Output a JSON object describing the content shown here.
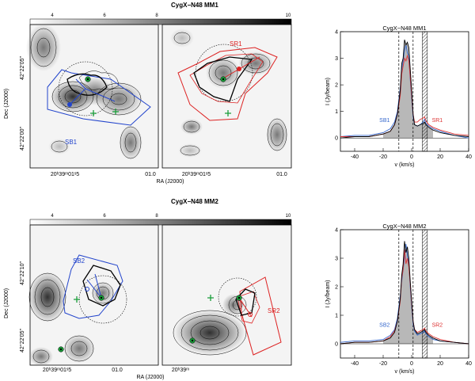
{
  "top": {
    "title": "CygX−N48  MM1",
    "colorbar": {
      "ticks": [
        "4",
        "6",
        "8",
        "10"
      ]
    },
    "left_panel": {
      "dec_label": "Dec (J2000)",
      "dec_ticks": [
        "42°22′05″",
        "42°22′00″"
      ],
      "ra_ticks": [
        "20ʰ39ᵐ01ˢ5",
        "01.0"
      ],
      "ra_label": "RA (J2000)",
      "outflow_label": "SB1",
      "outflow_color": "#2244cc"
    },
    "right_panel": {
      "outflow_label": "SR1",
      "outflow_color": "#dd2222",
      "ra_ticks": [
        "20ʰ39ᵐ01ˢ5",
        "01.0"
      ]
    },
    "spectrum": {
      "title": "CygX−N48  MM1",
      "ylabel": "I (Jy/beam)",
      "xlabel": "v (km/s)",
      "left_label": "SB1",
      "right_label": "SR1"
    }
  },
  "bottom": {
    "title": "CygX−N48  MM2",
    "colorbar": {
      "ticks": [
        "4",
        "6",
        "8",
        "10"
      ]
    },
    "left_panel": {
      "dec_label": "Dec (J2000)",
      "dec_ticks": [
        "42°22′10″",
        "42°22′05″"
      ],
      "ra_ticks": [
        "20ʰ39ᵐ01ˢ5",
        "01.0"
      ],
      "ra_label": "RA (J2000)",
      "outflow_label": "SB2",
      "outflow_color": "#2244cc"
    },
    "right_panel": {
      "outflow_label": "SR2",
      "outflow_color": "#dd2222",
      "ra_ticks": [
        "20ʰ39ᵐ"
      ]
    },
    "spectrum": {
      "title": "CygX−N48  MM2",
      "ylabel": "I (Jy/beam)",
      "xlabel": "v (km/s)",
      "left_label": "SB2",
      "right_label": "SR2"
    }
  },
  "chart_data": [
    {
      "type": "line",
      "title": "CygX−N48  MM1",
      "xlabel": "v (km/s)",
      "ylabel": "I (Jy/beam)",
      "xlim": [
        -50,
        40
      ],
      "ylim": [
        -0.5,
        4.0
      ],
      "x_ticks": [
        -40,
        -20,
        0,
        20,
        40
      ],
      "y_ticks": [
        0,
        1,
        2,
        3,
        4
      ],
      "vlines_dashed": [
        -9,
        1
      ],
      "hatched_band": [
        7.5,
        11
      ],
      "series": [
        {
          "name": "black",
          "color": "#000000",
          "x": [
            -50,
            -40,
            -30,
            -20,
            -15,
            -12,
            -10,
            -8,
            -7,
            -6,
            -5,
            -4,
            -3,
            -2,
            -1,
            0,
            1,
            2,
            4,
            6,
            8,
            9,
            10,
            12,
            15,
            20,
            30,
            40
          ],
          "y": [
            0.0,
            0.05,
            0.05,
            0.15,
            0.25,
            0.5,
            0.9,
            1.8,
            2.8,
            3.0,
            3.7,
            3.5,
            3.6,
            3.4,
            2.6,
            1.8,
            0.9,
            0.5,
            0.45,
            0.5,
            0.55,
            0.6,
            0.5,
            0.4,
            0.3,
            0.2,
            0.1,
            0.05
          ]
        },
        {
          "name": "SB1",
          "color": "#3366cc",
          "x": [
            -50,
            -40,
            -30,
            -20,
            -15,
            -12,
            -10,
            -8,
            -7,
            -6,
            -5,
            -4,
            -3,
            -2,
            -1,
            0,
            1,
            2,
            4,
            6,
            8,
            9,
            10,
            12,
            15,
            20,
            30,
            40
          ],
          "y": [
            0.05,
            0.1,
            0.1,
            0.2,
            0.35,
            0.6,
            1.0,
            1.9,
            2.6,
            2.9,
            3.3,
            3.5,
            3.2,
            3.1,
            2.2,
            1.5,
            0.8,
            0.5,
            0.45,
            0.5,
            0.6,
            0.7,
            0.55,
            0.45,
            0.35,
            0.25,
            0.1,
            0.0
          ]
        },
        {
          "name": "SR1",
          "color": "#dd3333",
          "x": [
            -50,
            -40,
            -30,
            -20,
            -15,
            -12,
            -10,
            -8,
            -7,
            -6,
            -5,
            -4,
            -3,
            -2,
            -1,
            0,
            1,
            2,
            4,
            6,
            8,
            9,
            10,
            12,
            15,
            20,
            30,
            40
          ],
          "y": [
            0.05,
            0.05,
            0.05,
            0.15,
            0.25,
            0.5,
            0.9,
            1.6,
            2.4,
            2.7,
            3.0,
            2.9,
            3.1,
            2.9,
            2.3,
            1.6,
            0.9,
            0.6,
            0.6,
            0.7,
            0.75,
            0.8,
            0.65,
            0.5,
            0.4,
            0.3,
            0.15,
            0.1
          ]
        }
      ]
    },
    {
      "type": "line",
      "title": "CygX−N48  MM2",
      "xlabel": "v (km/s)",
      "ylabel": "I (Jy/beam)",
      "xlim": [
        -50,
        40
      ],
      "ylim": [
        -0.5,
        4.0
      ],
      "x_ticks": [
        -40,
        -20,
        0,
        20,
        40
      ],
      "y_ticks": [
        0,
        1,
        2,
        3,
        4
      ],
      "vlines_dashed": [
        -9,
        1
      ],
      "hatched_band": [
        7.5,
        11
      ],
      "series": [
        {
          "name": "black",
          "color": "#000000",
          "x": [
            -50,
            -40,
            -30,
            -20,
            -15,
            -12,
            -10,
            -8,
            -7,
            -6,
            -5,
            -4,
            -3,
            -2,
            -1,
            0,
            1,
            2,
            4,
            6,
            8,
            9,
            10,
            12,
            15,
            20,
            30,
            40
          ],
          "y": [
            0.0,
            0.05,
            0.05,
            0.1,
            0.2,
            0.4,
            0.8,
            1.6,
            2.4,
            2.8,
            3.6,
            3.2,
            3.4,
            3.0,
            2.2,
            1.5,
            0.8,
            0.5,
            0.35,
            0.4,
            0.45,
            0.5,
            0.4,
            0.3,
            0.2,
            0.1,
            0.05,
            0.0
          ]
        },
        {
          "name": "SB2",
          "color": "#3366cc",
          "x": [
            -50,
            -40,
            -30,
            -20,
            -15,
            -12,
            -10,
            -8,
            -7,
            -6,
            -5,
            -4,
            -3,
            -2,
            -1,
            0,
            1,
            2,
            4,
            6,
            8,
            9,
            10,
            12,
            15,
            20,
            30,
            40
          ],
          "y": [
            0.05,
            0.1,
            0.1,
            0.15,
            0.3,
            0.5,
            0.9,
            1.7,
            2.2,
            2.6,
            3.0,
            3.5,
            3.1,
            2.8,
            2.0,
            1.3,
            0.7,
            0.45,
            0.3,
            0.35,
            0.4,
            0.45,
            0.35,
            0.25,
            0.15,
            0.1,
            0.05,
            0.0
          ]
        },
        {
          "name": "SR2",
          "color": "#dd3333",
          "x": [
            -50,
            -40,
            -30,
            -20,
            -15,
            -12,
            -10,
            -8,
            -7,
            -6,
            -5,
            -4,
            -3,
            -2,
            -1,
            0,
            1,
            2,
            4,
            6,
            8,
            9,
            10,
            12,
            15,
            20,
            30,
            40
          ],
          "y": [
            0.0,
            0.05,
            0.05,
            0.1,
            0.25,
            0.45,
            0.8,
            1.5,
            2.3,
            2.6,
            3.3,
            2.8,
            3.0,
            2.7,
            2.1,
            1.4,
            0.8,
            0.5,
            0.4,
            0.45,
            0.5,
            0.55,
            0.45,
            0.35,
            0.25,
            0.15,
            0.05,
            0.0
          ]
        }
      ]
    }
  ]
}
